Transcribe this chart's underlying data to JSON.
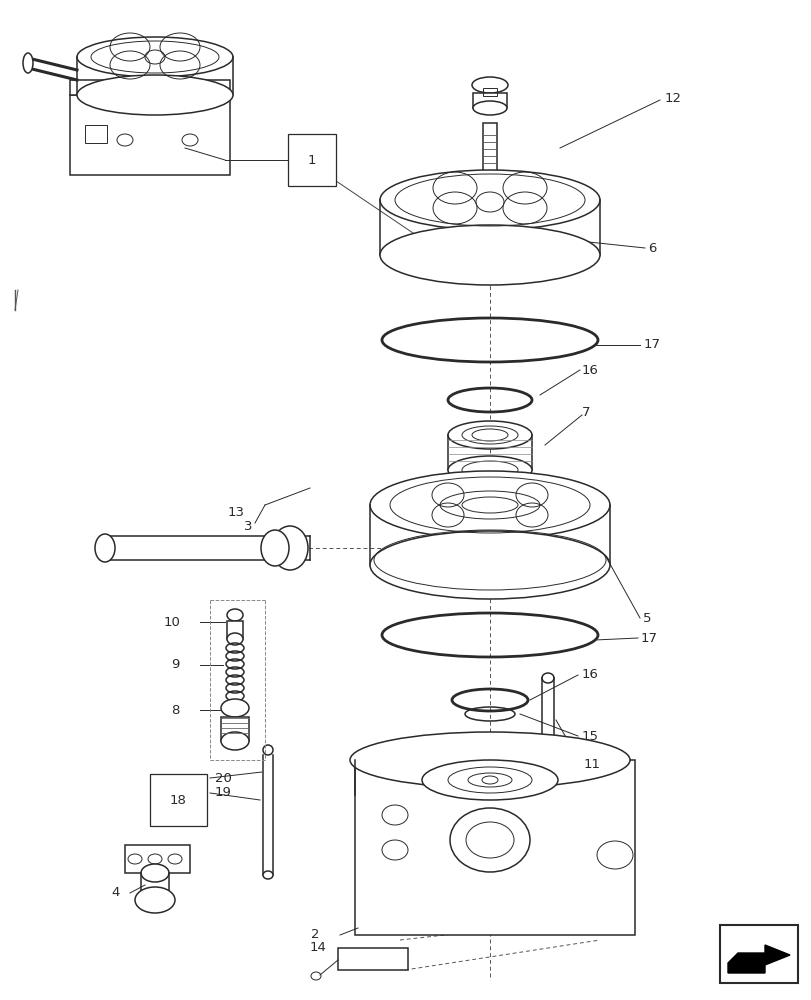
{
  "bg": "#ffffff",
  "lc": "#2a2a2a",
  "lw": 1.1,
  "thin": 0.7,
  "thick": 2.0,
  "label_fs": 9.5
}
